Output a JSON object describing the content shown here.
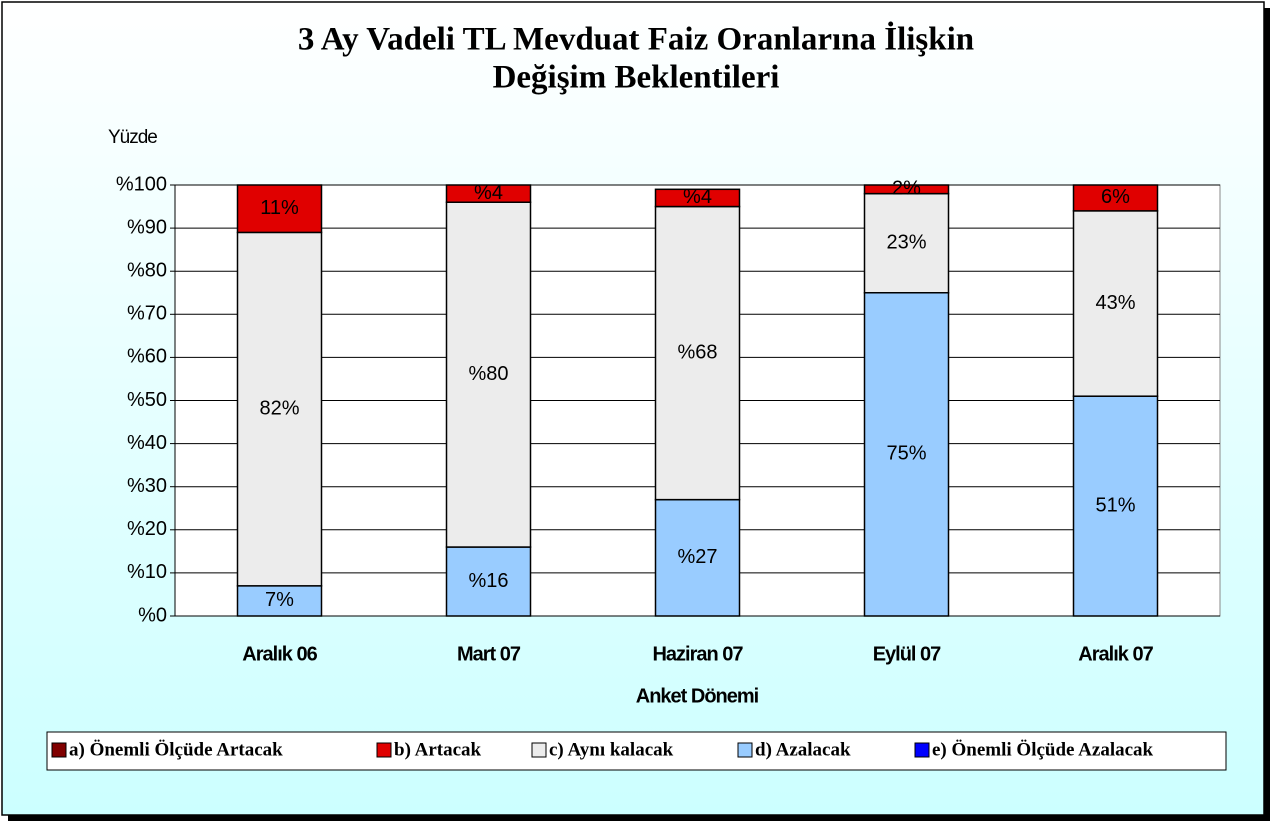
{
  "chart_data": {
    "type": "stacked_bar",
    "title": "3 Ay Vadeli TL Mevduat Faiz Oranlarına İlişkin",
    "subtitle": "Değişim Beklentileri",
    "ylabel": "Yüzde",
    "xlabel": "Anket Dönemi",
    "categories": [
      "Aralık 06",
      "Mart 07",
      "Haziran 07",
      "Eylül 07",
      "Aralık 07"
    ],
    "series": [
      {
        "name": "d)  Azalacak",
        "color": "#99ccff",
        "values": [
          7,
          16,
          27,
          75,
          51
        ],
        "value_labels": [
          "7%",
          "%16",
          "%27",
          "75%",
          "51%"
        ]
      },
      {
        "name": "c) Aynı kalacak",
        "color": "#ececec",
        "values": [
          82,
          80,
          68,
          23,
          43
        ],
        "value_labels": [
          "82%",
          "%80",
          "%68",
          "23%",
          "43%"
        ]
      },
      {
        "name": "b) Artacak",
        "color": "#e00000",
        "values": [
          11,
          4,
          4,
          2,
          6
        ],
        "value_labels": [
          "11%",
          "%4",
          "%4",
          "2%",
          "6%"
        ]
      },
      {
        "name": "a) Önemli Ölçüde Artacak",
        "color": "#800000",
        "values": [
          0,
          0,
          0,
          0,
          0
        ]
      },
      {
        "name": "e) Önemli Ölçüde Azalacak",
        "color": "#0000ff",
        "values": [
          0,
          0,
          0,
          0,
          0
        ]
      }
    ],
    "legend_order": [
      3,
      2,
      1,
      0,
      4
    ],
    "ylim": [
      0,
      100
    ],
    "yticks": [
      {
        "value": 0,
        "label": "%0"
      },
      {
        "value": 10,
        "label": "%10"
      },
      {
        "value": 20,
        "label": "%20"
      },
      {
        "value": 30,
        "label": "%30"
      },
      {
        "value": 40,
        "label": "%40"
      },
      {
        "value": 50,
        "label": "%50"
      },
      {
        "value": 60,
        "label": "%60"
      },
      {
        "value": 70,
        "label": "%70"
      },
      {
        "value": 80,
        "label": "%80"
      },
      {
        "value": 90,
        "label": "%90"
      },
      {
        "value": 100,
        "label": "%100"
      }
    ],
    "grid": true
  }
}
